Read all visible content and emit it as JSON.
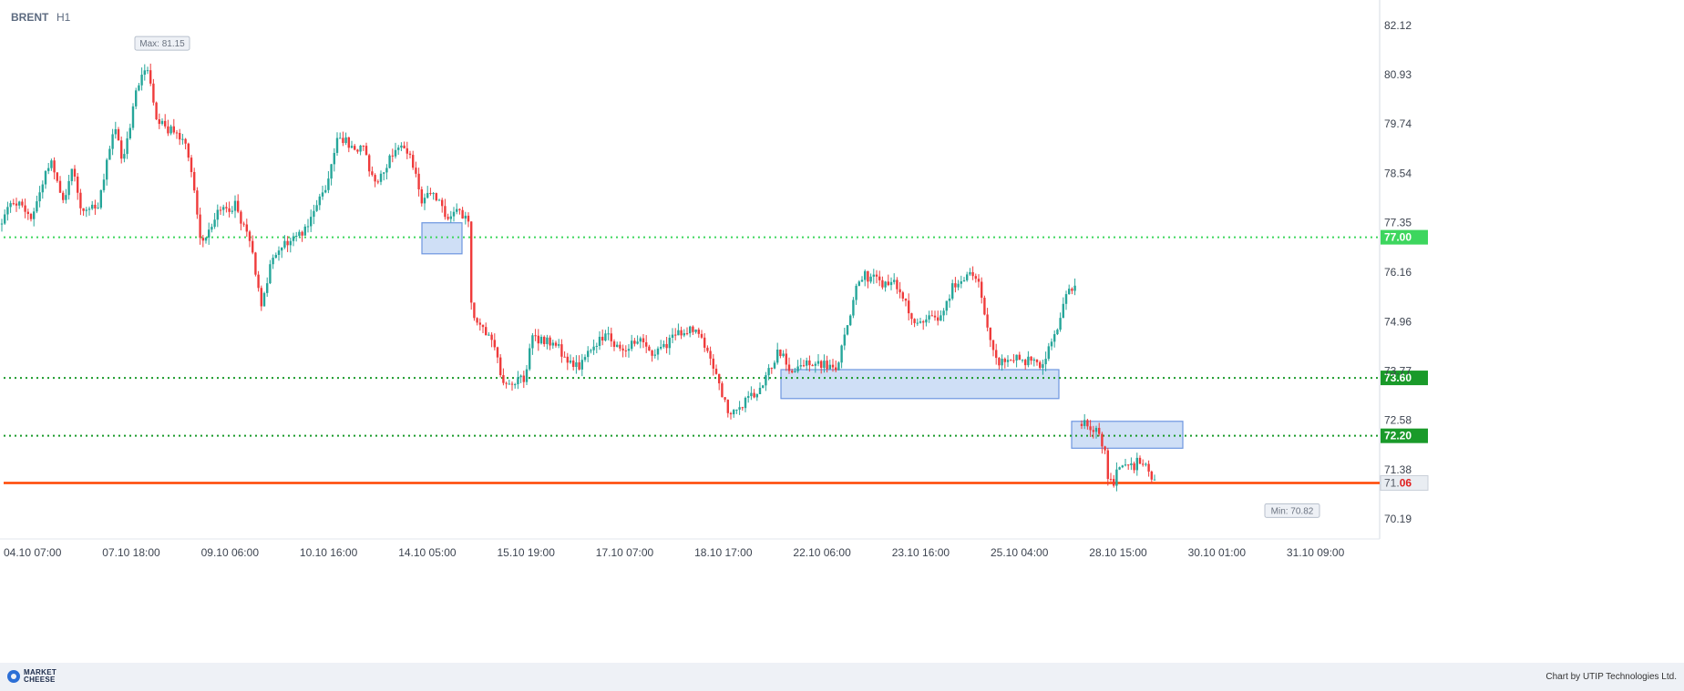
{
  "header": {
    "symbol": "BRENT",
    "timeframe": "H1"
  },
  "chart_data": {
    "type": "candlestick",
    "symbol": "BRENT",
    "timeframe": "H1",
    "ylim": [
      69.8,
      82.5
    ],
    "y_ticks": [
      82.12,
      80.93,
      79.74,
      78.54,
      77.35,
      76.16,
      74.96,
      73.77,
      72.58,
      71.38,
      70.19
    ],
    "x_ticks": [
      "04.10 07:00",
      "07.10 18:00",
      "09.10 06:00",
      "10.10 16:00",
      "14.10 05:00",
      "15.10 19:00",
      "17.10 07:00",
      "18.10 17:00",
      "22.10 06:00",
      "23.10 16:00",
      "25.10 04:00",
      "28.10 15:00",
      "30.10 01:00",
      "31.10 09:00"
    ],
    "max_label": "Max: 81.15",
    "max_value": 81.15,
    "min_label": "Min: 70.82",
    "min_value": 70.82,
    "current_price_label": {
      "prefix": "71.",
      "suffix": "06"
    },
    "current_price": 71.06,
    "levels": [
      {
        "value": 77.0,
        "label": "77.00",
        "color": "#3dd65e",
        "style": "dotted"
      },
      {
        "value": 73.6,
        "label": "73.60",
        "color": "#1a9a2a",
        "style": "dotted"
      },
      {
        "value": 72.2,
        "label": "72.20",
        "color": "#1a9a2a",
        "style": "dotted"
      },
      {
        "value": 71.06,
        "label": "71.06",
        "color": "#ff4500",
        "style": "solid"
      }
    ],
    "zones": [
      {
        "name": "zone-1",
        "from": "14.10 00:00",
        "to": "14.10 10:00",
        "low": 76.6,
        "high": 77.35
      },
      {
        "name": "zone-2",
        "from": "21.10 18:00",
        "to": "25.10 12:00",
        "low": 73.1,
        "high": 73.8
      },
      {
        "name": "zone-3",
        "from": "28.10 00:00",
        "to": "29.10 03:00",
        "low": 71.9,
        "high": 72.55
      }
    ],
    "path_points": [
      [
        0,
        77.3
      ],
      [
        15,
        77.9
      ],
      [
        35,
        77.5
      ],
      [
        55,
        78.9
      ],
      [
        70,
        77.9
      ],
      [
        80,
        78.7
      ],
      [
        90,
        77.6
      ],
      [
        108,
        77.7
      ],
      [
        125,
        79.7
      ],
      [
        135,
        78.8
      ],
      [
        150,
        80.6
      ],
      [
        157,
        81.0
      ],
      [
        163,
        81.1
      ],
      [
        172,
        79.9
      ],
      [
        185,
        79.6
      ],
      [
        205,
        79.3
      ],
      [
        212,
        78.3
      ],
      [
        221,
        76.8
      ],
      [
        235,
        77.5
      ],
      [
        258,
        77.8
      ],
      [
        275,
        76.8
      ],
      [
        282,
        76.0
      ],
      [
        288,
        75.3
      ],
      [
        296,
        76.3
      ],
      [
        310,
        76.8
      ],
      [
        330,
        77.1
      ],
      [
        345,
        77.6
      ],
      [
        358,
        78.3
      ],
      [
        372,
        79.5
      ],
      [
        385,
        79.2
      ],
      [
        400,
        79.1
      ],
      [
        410,
        78.3
      ],
      [
        425,
        78.8
      ],
      [
        438,
        79.3
      ],
      [
        450,
        78.9
      ],
      [
        455,
        78.7
      ],
      [
        463,
        77.8
      ],
      [
        475,
        78.1
      ],
      [
        490,
        77.5
      ],
      [
        505,
        77.6
      ],
      [
        514,
        77.3
      ],
      [
        516,
        75.5
      ],
      [
        522,
        75.0
      ],
      [
        540,
        74.6
      ],
      [
        552,
        73.4
      ],
      [
        575,
        73.6
      ],
      [
        585,
        74.6
      ],
      [
        610,
        74.4
      ],
      [
        630,
        73.8
      ],
      [
        648,
        74.2
      ],
      [
        665,
        74.7
      ],
      [
        680,
        74.3
      ],
      [
        700,
        74.5
      ],
      [
        718,
        74.2
      ],
      [
        735,
        74.5
      ],
      [
        750,
        74.8
      ],
      [
        766,
        74.7
      ],
      [
        780,
        74.1
      ],
      [
        793,
        73.2
      ],
      [
        800,
        72.6
      ],
      [
        812,
        72.9
      ],
      [
        830,
        73.3
      ],
      [
        845,
        73.8
      ],
      [
        855,
        74.3
      ],
      [
        868,
        73.7
      ],
      [
        885,
        74.0
      ],
      [
        905,
        73.9
      ],
      [
        918,
        73.8
      ],
      [
        930,
        74.9
      ],
      [
        940,
        75.8
      ],
      [
        948,
        76.1
      ],
      [
        965,
        75.9
      ],
      [
        980,
        75.9
      ],
      [
        995,
        75.4
      ],
      [
        1003,
        74.8
      ],
      [
        1015,
        75.1
      ],
      [
        1030,
        75.0
      ],
      [
        1045,
        75.8
      ],
      [
        1055,
        75.9
      ],
      [
        1068,
        76.1
      ],
      [
        1075,
        75.8
      ],
      [
        1083,
        74.9
      ],
      [
        1095,
        73.9
      ],
      [
        1110,
        74.1
      ],
      [
        1128,
        74.0
      ],
      [
        1143,
        73.9
      ],
      [
        1158,
        74.6
      ],
      [
        1170,
        75.6
      ],
      [
        1180,
        75.8
      ]
    ],
    "path_points_2": [
      [
        1185,
        72.5
      ],
      [
        1200,
        72.4
      ],
      [
        1208,
        72.1
      ],
      [
        1213,
        71.9
      ],
      [
        1216,
        71.2
      ],
      [
        1222,
        71.1
      ],
      [
        1232,
        71.6
      ],
      [
        1240,
        71.4
      ],
      [
        1250,
        71.6
      ],
      [
        1262,
        71.3
      ],
      [
        1268,
        71.1
      ]
    ]
  },
  "footer": {
    "logo_line1": "MARKET",
    "logo_line2": "CHEESE",
    "credit": "Chart by UTIP Technologies Ltd."
  },
  "colors": {
    "up": "#26a69a",
    "down": "#ef3b3b",
    "zone_fill": "#c7d9f5",
    "zone_stroke": "#6d96e0",
    "axis_text": "#3d4450",
    "current_line": "#ff4500"
  }
}
